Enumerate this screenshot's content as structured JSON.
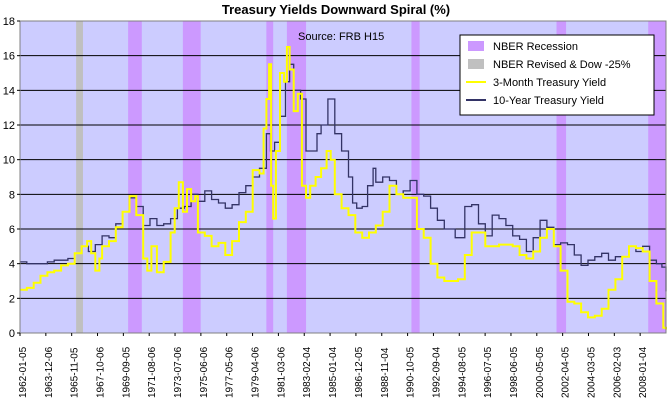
{
  "chart_data": {
    "type": "line",
    "title": "Treasury Yields Downward Spiral (%)",
    "source": "Source: FRB H15",
    "ylim": [
      0,
      18
    ],
    "yticks": [
      0,
      2,
      4,
      6,
      8,
      10,
      12,
      14,
      16,
      18
    ],
    "xlim": [
      1962.0,
      2009.2
    ],
    "xtick_labels": [
      "1962-01-05",
      "1963-12-06",
      "1965-11-05",
      "1967-10-06",
      "1969-09-05",
      "1971-08-06",
      "1973-07-06",
      "1975-06-06",
      "1977-05-06",
      "1979-04-06",
      "1981-03-06",
      "1983-02-04",
      "1985-01-04",
      "1986-12-05",
      "1988-11-04",
      "1990-10-05",
      "1992-09-04",
      "1994-08-05",
      "1996-07-05",
      "1998-06-05",
      "2000-05-05",
      "2002-04-05",
      "2004-03-05",
      "2006-02-03",
      "2008-01-04"
    ],
    "grid": true,
    "legend_position": "top-right",
    "colors": {
      "plot_bg": "#ccccff",
      "recession": "#cc99ff",
      "revised": "#c0c0c0",
      "three_month": "#ffff00",
      "ten_year": "#333366"
    },
    "legend": [
      {
        "label": "NBER Recession",
        "kind": "swatch",
        "color": "#cc99ff"
      },
      {
        "label": "NBER Revised & Dow -25%",
        "kind": "swatch",
        "color": "#c0c0c0"
      },
      {
        "label": "3-Month Treasury Yield",
        "kind": "line",
        "color": "#ffff00"
      },
      {
        "label": "10-Year Treasury Yield",
        "kind": "line",
        "color": "#333366"
      }
    ],
    "recessions": [
      [
        1969.9,
        1970.9
      ],
      [
        1973.9,
        1975.2
      ],
      [
        1980.0,
        1980.5
      ],
      [
        1981.5,
        1982.9
      ],
      [
        1990.6,
        1991.2
      ],
      [
        2001.2,
        2001.9
      ],
      [
        2007.9,
        2009.2
      ]
    ],
    "revised": [
      [
        1966.1,
        1966.6
      ]
    ],
    "series": [
      {
        "name": "3-Month Treasury Yield",
        "x": [
          1962.0,
          1962.5,
          1963.0,
          1963.5,
          1964.0,
          1964.5,
          1965.0,
          1965.5,
          1966.0,
          1966.5,
          1966.9,
          1967.2,
          1967.5,
          1967.8,
          1968.0,
          1968.5,
          1969.0,
          1969.5,
          1970.0,
          1970.5,
          1971.0,
          1971.3,
          1971.6,
          1972.0,
          1972.5,
          1973.0,
          1973.3,
          1973.6,
          1973.9,
          1974.2,
          1974.5,
          1974.8,
          1975.0,
          1975.5,
          1976.0,
          1976.5,
          1977.0,
          1977.5,
          1978.0,
          1978.5,
          1979.0,
          1979.5,
          1979.8,
          1980.0,
          1980.2,
          1980.35,
          1980.5,
          1980.7,
          1981.0,
          1981.3,
          1981.5,
          1981.7,
          1982.0,
          1982.3,
          1982.6,
          1982.9,
          1983.2,
          1983.6,
          1984.0,
          1984.4,
          1984.7,
          1985.0,
          1985.5,
          1986.0,
          1986.5,
          1987.0,
          1987.5,
          1988.0,
          1988.5,
          1989.0,
          1989.5,
          1990.0,
          1990.5,
          1991.0,
          1991.5,
          1992.0,
          1992.5,
          1993.0,
          1994.0,
          1994.5,
          1995.0,
          1996.0,
          1997.0,
          1998.0,
          1998.5,
          1999.0,
          1999.5,
          2000.0,
          2000.5,
          2001.0,
          2001.5,
          2002.0,
          2002.5,
          2003.0,
          2003.5,
          2004.0,
          2004.5,
          2005.0,
          2005.5,
          2006.0,
          2006.5,
          2007.0,
          2007.5,
          2008.0,
          2008.5,
          2009.0,
          2009.2
        ],
        "values": [
          2.5,
          2.6,
          2.9,
          3.3,
          3.5,
          3.6,
          3.9,
          4.0,
          4.6,
          5.0,
          5.3,
          4.6,
          3.6,
          4.3,
          5.0,
          5.3,
          6.1,
          7.0,
          7.9,
          6.8,
          4.3,
          3.6,
          5.0,
          3.5,
          4.1,
          5.8,
          7.2,
          8.7,
          7.0,
          8.3,
          7.6,
          7.9,
          5.8,
          5.6,
          5.0,
          5.2,
          4.5,
          5.3,
          6.4,
          7.0,
          9.4,
          9.2,
          11.8,
          13.5,
          15.5,
          8.5,
          6.6,
          10.5,
          15.0,
          14.5,
          16.5,
          15.2,
          12.8,
          13.8,
          8.5,
          7.8,
          8.5,
          9.0,
          9.5,
          10.5,
          10.0,
          8.0,
          7.2,
          6.8,
          5.8,
          5.5,
          5.8,
          6.2,
          7.0,
          8.5,
          8.0,
          7.8,
          7.8,
          6.0,
          5.5,
          4.0,
          3.2,
          3.0,
          3.1,
          4.5,
          5.8,
          5.0,
          5.1,
          5.0,
          4.5,
          4.3,
          4.7,
          5.5,
          6.0,
          5.0,
          3.6,
          1.8,
          1.7,
          1.2,
          0.9,
          1.0,
          1.4,
          2.5,
          3.1,
          4.4,
          5.0,
          4.9,
          4.7,
          3.0,
          1.7,
          0.3,
          0.2
        ]
      },
      {
        "name": "10-Year Treasury Yield",
        "x": [
          1962.0,
          1962.5,
          1963.0,
          1963.5,
          1964.0,
          1964.5,
          1965.0,
          1965.5,
          1966.0,
          1966.5,
          1967.0,
          1967.5,
          1968.0,
          1968.5,
          1969.0,
          1969.5,
          1970.0,
          1970.5,
          1971.0,
          1971.5,
          1972.0,
          1972.5,
          1973.0,
          1973.5,
          1974.0,
          1974.5,
          1975.0,
          1975.5,
          1976.0,
          1976.5,
          1977.0,
          1977.5,
          1978.0,
          1978.5,
          1979.0,
          1979.5,
          1980.0,
          1980.3,
          1980.6,
          1981.0,
          1981.4,
          1981.7,
          1982.0,
          1982.5,
          1982.9,
          1983.3,
          1983.7,
          1984.0,
          1984.5,
          1985.0,
          1985.5,
          1986.0,
          1986.3,
          1986.6,
          1987.0,
          1987.4,
          1987.8,
          1988.0,
          1988.5,
          1989.0,
          1989.5,
          1990.0,
          1990.5,
          1991.0,
          1991.5,
          1992.0,
          1992.5,
          1993.0,
          1993.8,
          1994.5,
          1995.0,
          1995.5,
          1996.0,
          1996.5,
          1997.0,
          1997.5,
          1998.0,
          1998.5,
          1999.0,
          1999.5,
          2000.0,
          2000.5,
          2001.0,
          2001.5,
          2002.0,
          2002.5,
          2003.0,
          2003.5,
          2004.0,
          2004.5,
          2005.0,
          2005.5,
          2006.0,
          2006.5,
          2007.0,
          2007.5,
          2008.0,
          2008.5,
          2008.9,
          2009.2
        ],
        "values": [
          4.1,
          4.0,
          4.0,
          4.0,
          4.1,
          4.2,
          4.2,
          4.3,
          4.6,
          5.0,
          4.7,
          5.1,
          5.6,
          5.5,
          6.3,
          7.0,
          7.8,
          7.3,
          6.2,
          6.6,
          6.2,
          6.3,
          6.6,
          7.2,
          7.3,
          8.0,
          7.6,
          8.2,
          7.7,
          7.5,
          7.2,
          7.4,
          8.1,
          8.5,
          9.0,
          9.5,
          11.5,
          10.5,
          11.0,
          12.5,
          14.5,
          15.5,
          14.0,
          13.5,
          10.5,
          10.5,
          11.5,
          12.0,
          13.5,
          11.5,
          10.5,
          9.0,
          7.5,
          7.2,
          7.3,
          8.5,
          9.5,
          8.7,
          9.0,
          8.8,
          8.0,
          8.2,
          8.8,
          8.0,
          7.9,
          7.2,
          6.5,
          6.0,
          5.5,
          7.3,
          7.4,
          6.3,
          5.6,
          6.8,
          6.6,
          6.2,
          5.6,
          5.4,
          4.7,
          5.5,
          6.5,
          6.1,
          5.1,
          5.2,
          5.1,
          4.5,
          3.9,
          4.2,
          4.4,
          4.6,
          4.2,
          4.4,
          4.4,
          5.0,
          4.7,
          5.0,
          4.2,
          4.0,
          3.8,
          2.4
        ]
      }
    ]
  }
}
